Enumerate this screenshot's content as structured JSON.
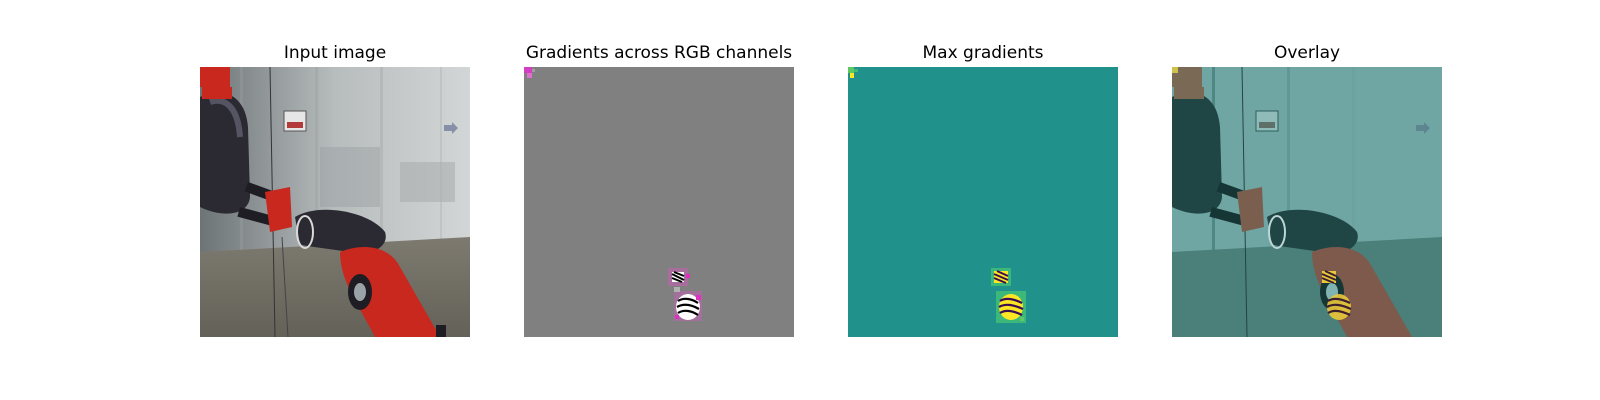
{
  "figure": {
    "panels": [
      {
        "title": "Input image"
      },
      {
        "title": "Gradients across RGB channels"
      },
      {
        "title": "Max gradients"
      },
      {
        "title": "Overlay"
      }
    ]
  },
  "colors": {
    "background": "#ffffff",
    "gradient_gray": "#808080",
    "viridis_mid": "#21918c",
    "viridis_yellow": "#fde725",
    "robot_red": "#c8281e",
    "robot_dark": "#2b2a33"
  },
  "icons": {
    "input": "robot-arm-photo",
    "gradients": "rgb-gradient-map",
    "max": "saliency-heatmap",
    "overlay": "saliency-overlay"
  }
}
